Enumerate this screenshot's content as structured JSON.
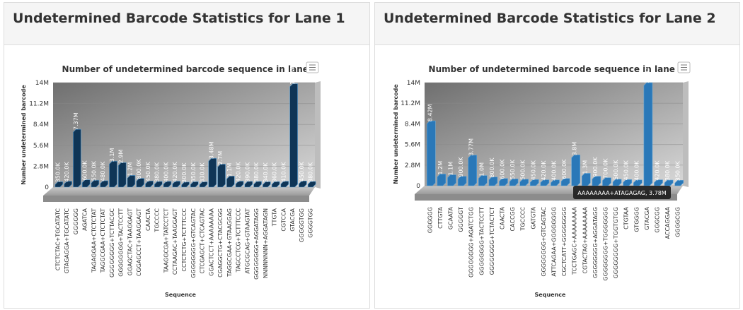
{
  "panels": [
    {
      "title": "Undetermined Barcode Statistics for Lane 1"
    },
    {
      "title": "Undetermined Barcode Statistics for Lane 2"
    }
  ],
  "chart_data": [
    {
      "type": "bar",
      "title": "Number of undetermined barcode sequence in lane 1",
      "x_label": "Sequence",
      "y_label": "Number undetermined barcode",
      "color": "#0f3556",
      "categories": [
        "CTCTCTAC+TGCATATC",
        "GTAGAGGA+TGCATATC",
        "GGGGGG",
        "AGATCA",
        "TAGAGGAA+CTCTCTAT",
        "TAGGCGAA+CTCTCTAT",
        "GGGGGGGG+TCTTACGC",
        "GGGGGGGG+TACTCCTT",
        "GGAGCTAC+TAAGGAGT",
        "CGGAGCCT+TAAGGAGT",
        "CAACTA",
        "TGCCCC",
        "TAAGGCGA+TATCCTCT",
        "CCTAAGAC+TAAGGAGT",
        "CCTCTCTG+TCTTTCCC",
        "GGGGGGGG+GTCAGTAC",
        "CTCGAGCT+CTCAGTAC",
        "GGACTCCT+AAAAAAAA",
        "CGAGGCTG+CTACGCGG",
        "TAGGCGAA+GTAAGGAG",
        "TAGCCTCG+TCTTTCCC",
        "ATGCGCAG+GTAAGTAT",
        "GGGGGGGG+AGGATAGG",
        "NNNNNNNN+AGGATAGN",
        "TTGTA",
        "CGTCCA",
        "GTACGA",
        "GGGGGTGG",
        "GGGGTGG"
      ],
      "values": [
        350000,
        420000,
        7370000,
        600000,
        550000,
        480000,
        3100000,
        2900000,
        1200000,
        800000,
        450000,
        380000,
        400000,
        420000,
        300000,
        350000,
        330000,
        3480000,
        2700000,
        1100000,
        420000,
        390000,
        380000,
        340000,
        360000,
        410000,
        13460000,
        450000,
        380000
      ],
      "value_labels": [
        "350.0K",
        "420.0K",
        "7.37M",
        "600.0K",
        "550.0K",
        "480.0K",
        "3.1M",
        "2.9M",
        "1.2M",
        "800.0K",
        "450.0K",
        "380.0K",
        "400.0K",
        "420.0K",
        "300.0K",
        "350.0K",
        "330.0K",
        "3.48M",
        "2.7M",
        "1.1M",
        "420.0K",
        "390.0K",
        "380.0K",
        "340.0K",
        "360.0K",
        "410.0K",
        "13.46M",
        "450.0K",
        "380.0K"
      ],
      "ylim": [
        0,
        14000000
      ],
      "yticks": [
        0,
        {
          "value": 2800000,
          "label": "2.8M"
        },
        {
          "value": 5600000,
          "label": "5.6M"
        },
        {
          "value": 8400000,
          "label": "8.4M"
        },
        {
          "value": 11200000,
          "label": "11.2M"
        },
        {
          "value": 14000000,
          "label": "14M"
        }
      ],
      "grid": true
    },
    {
      "type": "bar",
      "title": "Number of undetermined barcode sequence in lane 2",
      "x_label": "Sequence",
      "y_label": "Number undetermined barcode",
      "color": "#2a78b8",
      "categories": [
        "GGGGGG",
        "CTTGTA",
        "GCAATA",
        "GGGGGT",
        "GGGGGGGG+AGATCTGG",
        "GGGGGGGG+TACTCCTT",
        "GGGGGGGG+TCTACTCT",
        "CAACTA",
        "CACCGG",
        "TGCCCC",
        "GATGTA",
        "GGGGGGGG+GTCAGTAC",
        "ATTCAGAA+GGGGGGGG",
        "CGCTCATT+GGGGGGGG",
        "TCCTGAGC+AAAAAAAA",
        "CGTACTAG+AAAAAAAA",
        "GGGGGGGG+AGGATAGG",
        "GGGGGGGG+TGGGGGGG",
        "GGGGGGGG+TGGTGTGG",
        "CTGTAA",
        "GTGGGG",
        "GTACGA",
        "GGGCGG",
        "ACCAGGAA",
        "GGGGCGG"
      ],
      "values": [
        8420000,
        1200000,
        1100000,
        900000,
        3770000,
        1000000,
        800000,
        600000,
        550000,
        500000,
        450000,
        420000,
        400000,
        600000,
        3800000,
        1300000,
        900000,
        700000,
        500000,
        450000,
        400000,
        13610000,
        420000,
        380000,
        350000
      ],
      "value_labels": [
        "8.42M",
        "1.2M",
        "1.1M",
        "900.0K",
        "3.77M",
        "1.0M",
        "800.0K",
        "600.0K",
        "550.0K",
        "500.0K",
        "450.0K",
        "420.0K",
        "400.0K",
        "600.0K",
        "3.8M",
        "1.3M",
        "900.0K",
        "700.0K",
        "500.0K",
        "450.0K",
        "400.0K",
        "13.61M",
        "420.0K",
        "380.0K",
        "350.0K"
      ],
      "tooltip": "AAAAAAAA+ATAGAGAG, 3.78M",
      "ylim": [
        0,
        14000000
      ],
      "yticks": [
        0,
        {
          "value": 2800000,
          "label": "2.8M"
        },
        {
          "value": 5600000,
          "label": "5.6M"
        },
        {
          "value": 8400000,
          "label": "8.4M"
        },
        {
          "value": 11200000,
          "label": "11.2M"
        },
        {
          "value": 14000000,
          "label": "14M"
        }
      ],
      "grid": true
    }
  ]
}
